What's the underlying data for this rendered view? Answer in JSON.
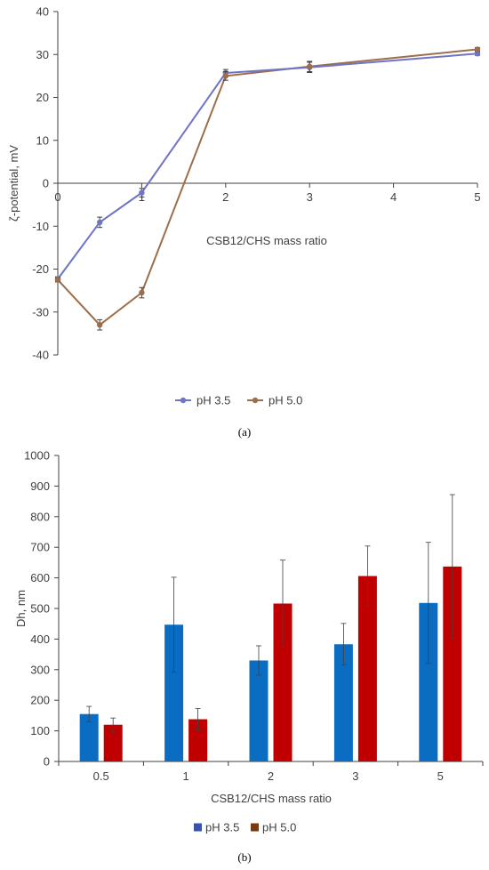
{
  "chart_data": [
    {
      "type": "line",
      "panel_label": "(a)",
      "x": [
        0,
        0.5,
        1,
        2,
        3,
        5
      ],
      "xticks": [
        "0",
        "1",
        "2",
        "3",
        "4",
        "5"
      ],
      "xlim": [
        0,
        5
      ],
      "ylim": [
        -40,
        40
      ],
      "yticks": [
        "40",
        "30",
        "20",
        "10",
        "0",
        "-10",
        "-20",
        "-30",
        "-40"
      ],
      "xlabel": "CSB12/CHS mass ratio",
      "ylabel": "ζ-potential, mV",
      "legend_position": "bottom",
      "grid": false,
      "series": [
        {
          "name": "pH 3.5",
          "color": "#6f74c4",
          "values": [
            -22.3,
            -9.1,
            -2.2,
            25.7,
            27.0,
            30.2
          ],
          "errors": [
            0.5,
            1.2,
            1.0,
            0.8,
            1.2,
            0.4
          ]
        },
        {
          "name": "pH 5.0",
          "color": "#9c6e4a",
          "values": [
            -22.5,
            -33.0,
            -25.5,
            25.0,
            27.2,
            31.2
          ],
          "errors": [
            0.5,
            1.2,
            1.2,
            1.0,
            1.2,
            0.4
          ]
        }
      ]
    },
    {
      "type": "bar",
      "panel_label": "(b)",
      "categories": [
        "0.5",
        "1",
        "2",
        "3",
        "5"
      ],
      "ylim": [
        0,
        1000
      ],
      "yticks": [
        "1000",
        "900",
        "800",
        "700",
        "600",
        "500",
        "400",
        "300",
        "200",
        "100",
        "0"
      ],
      "xlabel": "CSB12/CHS mass ratio",
      "ylabel": "Dh, nm",
      "legend_position": "bottom",
      "grid": false,
      "legend": [
        {
          "name": "pH 3.5",
          "color": "#3a52b0"
        },
        {
          "name": "pH 5.0",
          "color": "#7a3a10"
        }
      ],
      "series": [
        {
          "name": "pH 3.5",
          "color": "#0b6dc2",
          "values": [
            155,
            447,
            330,
            383,
            518
          ],
          "errors": [
            25,
            155,
            48,
            68,
            198
          ]
        },
        {
          "name": "pH 5.0",
          "color": "#c00000",
          "values": [
            120,
            138,
            516,
            606,
            637
          ],
          "errors": [
            22,
            35,
            142,
            98,
            235
          ]
        }
      ]
    }
  ]
}
